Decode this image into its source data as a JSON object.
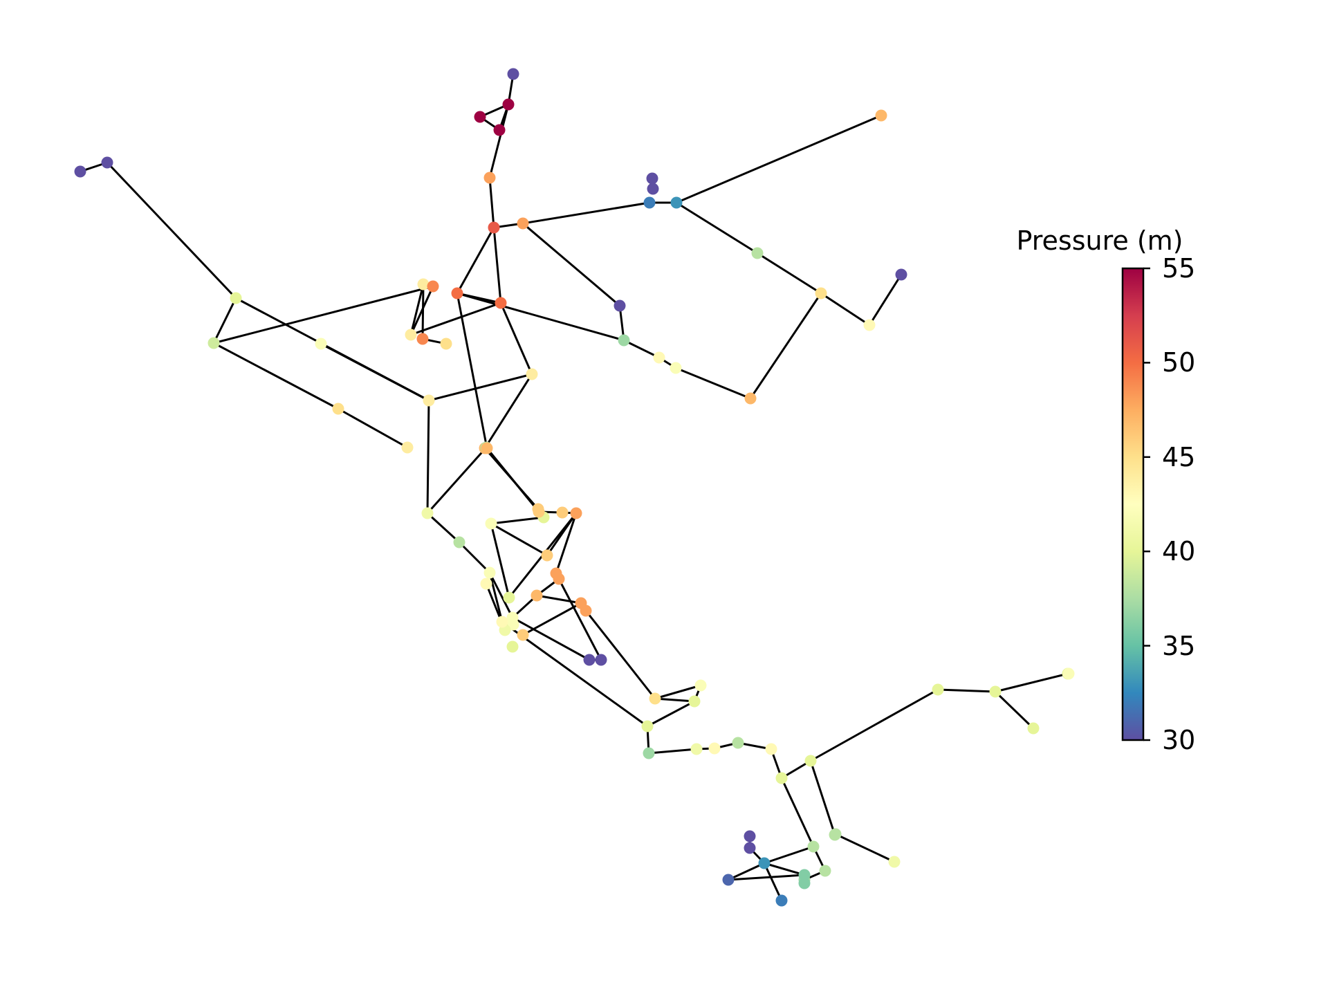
{
  "colorbar": {
    "title": "Pressure (m)",
    "min": 30,
    "max": 55,
    "ticks": [
      "55",
      "50",
      "45",
      "40",
      "35",
      "30"
    ],
    "colormap": [
      "#5e4fa2",
      "#3288bd",
      "#66c2a5",
      "#abdda4",
      "#e6f598",
      "#ffffbf",
      "#fee08b",
      "#fdae61",
      "#f46d43",
      "#d53e4f",
      "#9e0142"
    ]
  },
  "network": {
    "edge_color": "#000000",
    "nodes": [
      {
        "id": "n1",
        "p": 30
      },
      {
        "id": "n2",
        "p": 55
      },
      {
        "id": "n3",
        "p": 55
      },
      {
        "id": "n4",
        "p": 55
      },
      {
        "id": "n5",
        "p": 48
      },
      {
        "id": "n6",
        "p": 51
      },
      {
        "id": "n7",
        "p": 48
      },
      {
        "id": "n8",
        "p": 30
      },
      {
        "id": "n9",
        "p": 30
      },
      {
        "id": "n10",
        "p": 30
      },
      {
        "id": "n11",
        "p": 30
      },
      {
        "id": "n12",
        "p": 32
      },
      {
        "id": "n13",
        "p": 33
      },
      {
        "id": "n14",
        "p": 47
      },
      {
        "id": "n15",
        "p": 38
      },
      {
        "id": "n16",
        "p": 45
      },
      {
        "id": "n17",
        "p": 43
      },
      {
        "id": "n18",
        "p": 30
      },
      {
        "id": "n19",
        "p": 50
      },
      {
        "id": "n20",
        "p": 50
      },
      {
        "id": "n21",
        "p": 30
      },
      {
        "id": "n22",
        "p": 37
      },
      {
        "id": "n23",
        "p": 43
      },
      {
        "id": "n24",
        "p": 42
      },
      {
        "id": "n25",
        "p": 47
      },
      {
        "id": "n26",
        "p": 40
      },
      {
        "id": "n27",
        "p": 39
      },
      {
        "id": "n28",
        "p": 42
      },
      {
        "id": "n29",
        "p": 44
      },
      {
        "id": "n30",
        "p": 44
      },
      {
        "id": "n31",
        "p": 49
      },
      {
        "id": "n32",
        "p": 49
      },
      {
        "id": "n33",
        "p": 45
      },
      {
        "id": "n34",
        "p": 44
      },
      {
        "id": "n35",
        "p": 44
      },
      {
        "id": "n36",
        "p": 45
      },
      {
        "id": "n37",
        "p": 44
      },
      {
        "id": "n38",
        "p": 47
      },
      {
        "id": "n39",
        "p": 46
      },
      {
        "id": "n40",
        "p": 40
      },
      {
        "id": "n41",
        "p": 38
      },
      {
        "id": "n42",
        "p": 41
      },
      {
        "id": "n43",
        "p": 42
      },
      {
        "id": "n44",
        "p": 40
      },
      {
        "id": "n45",
        "p": 47
      },
      {
        "id": "n46",
        "p": 46
      },
      {
        "id": "n47",
        "p": 46
      },
      {
        "id": "n48",
        "p": 48
      },
      {
        "id": "n49",
        "p": 46
      },
      {
        "id": "n50",
        "p": 48
      },
      {
        "id": "n51",
        "p": 48
      },
      {
        "id": "n52",
        "p": 47
      },
      {
        "id": "n53",
        "p": 48
      },
      {
        "id": "n54",
        "p": 48
      },
      {
        "id": "n55",
        "p": 46
      },
      {
        "id": "n56",
        "p": 42
      },
      {
        "id": "n57",
        "p": 38
      },
      {
        "id": "n58",
        "p": 43
      },
      {
        "id": "n59",
        "p": 42
      },
      {
        "id": "n60",
        "p": 42
      },
      {
        "id": "n61",
        "p": 41
      },
      {
        "id": "n62",
        "p": 40
      },
      {
        "id": "n63",
        "p": 30
      },
      {
        "id": "n64",
        "p": 30
      },
      {
        "id": "n65",
        "p": 45
      },
      {
        "id": "n66",
        "p": 43
      },
      {
        "id": "n67",
        "p": 42
      },
      {
        "id": "n68",
        "p": 40
      },
      {
        "id": "n69",
        "p": 40
      },
      {
        "id": "n70",
        "p": 37
      },
      {
        "id": "n71",
        "p": 41
      },
      {
        "id": "n72",
        "p": 43
      },
      {
        "id": "n73",
        "p": 38
      },
      {
        "id": "n74",
        "p": 43
      },
      {
        "id": "n75",
        "p": 40
      },
      {
        "id": "n76",
        "p": 40
      },
      {
        "id": "n77",
        "p": 40
      },
      {
        "id": "n78",
        "p": 40
      },
      {
        "id": "n79",
        "p": 40
      },
      {
        "id": "n80",
        "p": 42
      },
      {
        "id": "n81",
        "p": 40
      },
      {
        "id": "n82",
        "p": 38
      },
      {
        "id": "n83",
        "p": 38
      },
      {
        "id": "n84",
        "p": 38
      },
      {
        "id": "n85",
        "p": 41
      },
      {
        "id": "n86",
        "p": 38
      },
      {
        "id": "n87",
        "p": 37
      },
      {
        "id": "n88",
        "p": 36
      },
      {
        "id": "n89",
        "p": 36
      },
      {
        "id": "n90",
        "p": 33
      },
      {
        "id": "n91",
        "p": 32
      },
      {
        "id": "n92",
        "p": 31
      },
      {
        "id": "n93",
        "p": 30
      },
      {
        "id": "n94",
        "p": 30
      }
    ],
    "edges": [
      [
        "n1",
        "n2"
      ],
      [
        "n2",
        "n3"
      ],
      [
        "n3",
        "n4"
      ],
      [
        "n4",
        "n2"
      ],
      [
        "n2",
        "n5"
      ],
      [
        "n5",
        "n6"
      ],
      [
        "n6",
        "n7"
      ],
      [
        "n6",
        "n19"
      ],
      [
        "n6",
        "n20"
      ],
      [
        "n8",
        "n9"
      ],
      [
        "n9",
        "n26"
      ],
      [
        "n7",
        "n12"
      ],
      [
        "n12",
        "n13"
      ],
      [
        "n13",
        "n14"
      ],
      [
        "n13",
        "n15"
      ],
      [
        "n15",
        "n16"
      ],
      [
        "n16",
        "n17"
      ],
      [
        "n17",
        "n18"
      ],
      [
        "n7",
        "n21"
      ],
      [
        "n21",
        "n22"
      ],
      [
        "n16",
        "n25"
      ],
      [
        "n20",
        "n22"
      ],
      [
        "n22",
        "n23"
      ],
      [
        "n23",
        "n24"
      ],
      [
        "n24",
        "n25"
      ],
      [
        "n19",
        "n20"
      ],
      [
        "n19",
        "n29"
      ],
      [
        "n29",
        "n31"
      ],
      [
        "n31",
        "n27"
      ],
      [
        "n30",
        "n32"
      ],
      [
        "n32",
        "n33"
      ],
      [
        "n19",
        "n34"
      ],
      [
        "n29",
        "n30"
      ],
      [
        "n26",
        "n27"
      ],
      [
        "n26",
        "n35"
      ],
      [
        "n27",
        "n36"
      ],
      [
        "n36",
        "n37"
      ],
      [
        "n35",
        "n28"
      ],
      [
        "n28",
        "n35"
      ],
      [
        "n34",
        "n35"
      ],
      [
        "n34",
        "n38"
      ],
      [
        "n38",
        "n39"
      ],
      [
        "n39",
        "n40"
      ],
      [
        "n40",
        "n41"
      ],
      [
        "n20",
        "n45"
      ],
      [
        "n45",
        "n46"
      ],
      [
        "n46",
        "n47"
      ],
      [
        "n47",
        "n48"
      ],
      [
        "n48",
        "n49"
      ],
      [
        "n48",
        "n50"
      ],
      [
        "n50",
        "n51"
      ],
      [
        "n51",
        "n52"
      ],
      [
        "n52",
        "n53"
      ],
      [
        "n53",
        "n54"
      ],
      [
        "n53",
        "n55"
      ],
      [
        "n35",
        "n42"
      ],
      [
        "n42",
        "n57"
      ],
      [
        "n41",
        "n42"
      ],
      [
        "n40",
        "n43"
      ],
      [
        "n43",
        "n44"
      ],
      [
        "n43",
        "n49"
      ],
      [
        "n44",
        "n48"
      ],
      [
        "n51",
        "n64"
      ],
      [
        "n52",
        "n60"
      ],
      [
        "n61",
        "n58"
      ],
      [
        "n54",
        "n65"
      ],
      [
        "n57",
        "n59"
      ],
      [
        "n59",
        "n66"
      ],
      [
        "n59",
        "n60"
      ],
      [
        "n60",
        "n63"
      ],
      [
        "n63",
        "n64"
      ],
      [
        "n65",
        "n67"
      ],
      [
        "n65",
        "n68"
      ],
      [
        "n68",
        "n69"
      ],
      [
        "n69",
        "n70"
      ],
      [
        "n67",
        "n68"
      ],
      [
        "n66",
        "n69"
      ],
      [
        "n70",
        "n71"
      ],
      [
        "n71",
        "n72"
      ],
      [
        "n72",
        "n73"
      ],
      [
        "n73",
        "n74"
      ],
      [
        "n74",
        "n75"
      ],
      [
        "n75",
        "n76"
      ],
      [
        "n76",
        "n77"
      ],
      [
        "n77",
        "n78"
      ],
      [
        "n78",
        "n79"
      ],
      [
        "n79",
        "n80"
      ],
      [
        "n78",
        "n81"
      ],
      [
        "n75",
        "n82"
      ],
      [
        "n76",
        "n83"
      ],
      [
        "n83",
        "n84"
      ],
      [
        "n84",
        "n85"
      ],
      [
        "n82",
        "n86"
      ],
      [
        "n86",
        "n87"
      ],
      [
        "n87",
        "n88"
      ],
      [
        "n88",
        "n89"
      ],
      [
        "n82",
        "n90"
      ],
      [
        "n90",
        "n91"
      ],
      [
        "n90",
        "n93"
      ],
      [
        "n90",
        "n92"
      ],
      [
        "n92",
        "n89"
      ],
      [
        "n89",
        "n90"
      ],
      [
        "n93",
        "n94"
      ]
    ]
  }
}
